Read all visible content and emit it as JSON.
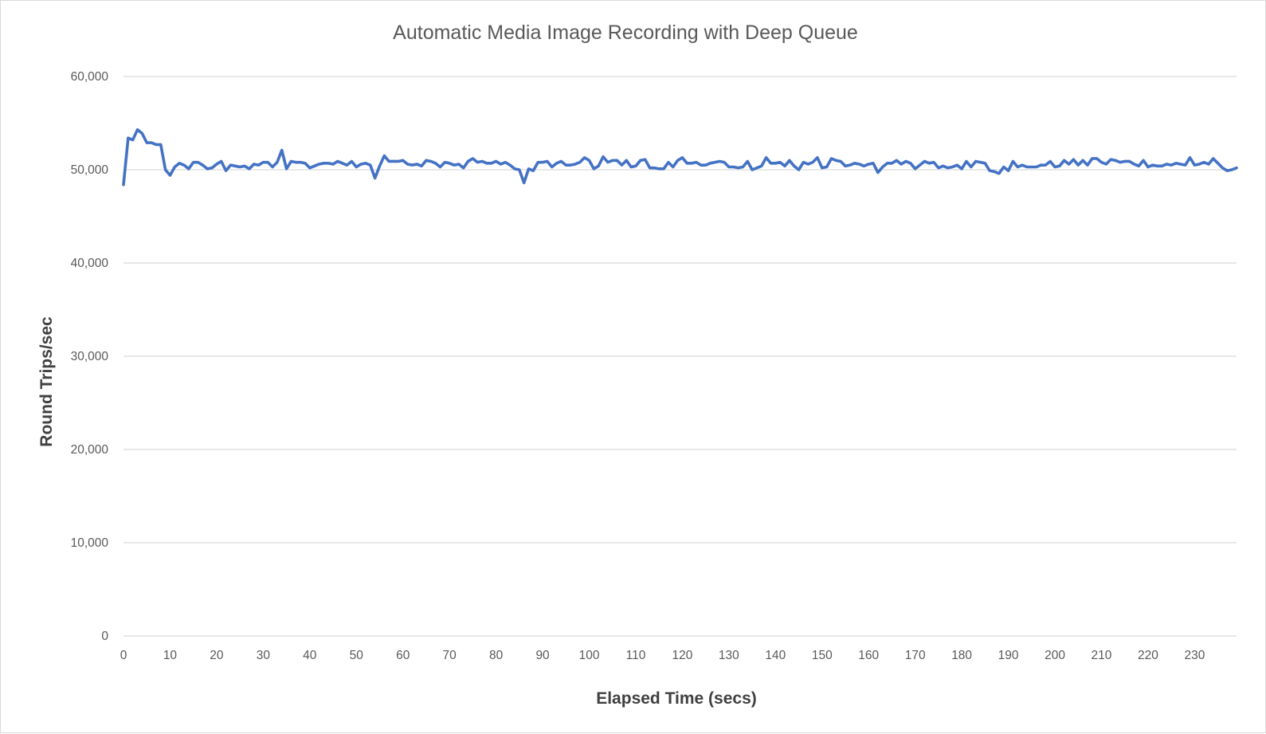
{
  "chart_data": {
    "type": "line",
    "title": "Automatic Media Image Recording with Deep Queue",
    "xlabel": "Elapsed Time (secs)",
    "ylabel": "Round Trips/sec",
    "xlim": [
      0,
      239
    ],
    "ylim": [
      0,
      60000
    ],
    "x_ticks": [
      0,
      10,
      20,
      30,
      40,
      50,
      60,
      70,
      80,
      90,
      100,
      110,
      120,
      130,
      140,
      150,
      160,
      170,
      180,
      190,
      200,
      210,
      220,
      230
    ],
    "x_tick_labels": [
      "0",
      "10",
      "20",
      "30",
      "40",
      "50",
      "60",
      "70",
      "80",
      "90",
      "100",
      "110",
      "120",
      "130",
      "140",
      "150",
      "160",
      "170",
      "180",
      "190",
      "200",
      "210",
      "220",
      "230"
    ],
    "y_ticks": [
      0,
      10000,
      20000,
      30000,
      40000,
      50000,
      60000
    ],
    "y_tick_labels": [
      "0",
      "10,000",
      "20,000",
      "30,000",
      "40,000",
      "50,000",
      "60,000"
    ],
    "grid": "horizontal",
    "legend": "none",
    "series": [
      {
        "color": "#4472c4",
        "x_start": 0,
        "x_step": 1,
        "values": [
          48400,
          53400,
          53200,
          54300,
          53900,
          52900,
          52900,
          52700,
          52700,
          50000,
          49400,
          50300,
          50700,
          50500,
          50100,
          50800,
          50800,
          50500,
          50100,
          50200,
          50600,
          50900,
          49900,
          50500,
          50400,
          50300,
          50400,
          50100,
          50600,
          50500,
          50800,
          50800,
          50300,
          50800,
          52100,
          50100,
          50900,
          50800,
          50800,
          50700,
          50200,
          50400,
          50600,
          50700,
          50700,
          50600,
          50900,
          50700,
          50500,
          50900,
          50300,
          50600,
          50700,
          50500,
          49100,
          50400,
          51500,
          50900,
          50900,
          50900,
          51000,
          50600,
          50500,
          50600,
          50400,
          51000,
          50900,
          50700,
          50300,
          50800,
          50700,
          50500,
          50600,
          50200,
          50900,
          51200,
          50800,
          50900,
          50700,
          50700,
          50900,
          50600,
          50800,
          50500,
          50100,
          50000,
          48600,
          50100,
          49900,
          50800,
          50800,
          50900,
          50300,
          50700,
          50900,
          50500,
          50500,
          50600,
          50800,
          51300,
          51000,
          50100,
          50400,
          51400,
          50800,
          51000,
          51000,
          50500,
          51000,
          50300,
          50400,
          51000,
          51100,
          50200,
          50200,
          50100,
          50100,
          50800,
          50300,
          51000,
          51300,
          50700,
          50700,
          50800,
          50500,
          50500,
          50700,
          50800,
          50900,
          50800,
          50300,
          50300,
          50200,
          50300,
          50900,
          50000,
          50200,
          50400,
          51300,
          50700,
          50700,
          50800,
          50400,
          51000,
          50400,
          50000,
          50800,
          50600,
          50800,
          51300,
          50200,
          50300,
          51200,
          51000,
          50900,
          50400,
          50500,
          50700,
          50600,
          50400,
          50600,
          50700,
          49700,
          50300,
          50700,
          50700,
          51000,
          50600,
          50900,
          50700,
          50100,
          50500,
          50900,
          50700,
          50800,
          50200,
          50400,
          50200,
          50300,
          50500,
          50100,
          50900,
          50300,
          50900,
          50800,
          50700,
          49900,
          49800,
          49600,
          50300,
          49900,
          50900,
          50300,
          50500,
          50300,
          50300,
          50300,
          50500,
          50500,
          50900,
          50300,
          50400,
          51000,
          50600,
          51100,
          50500,
          51000,
          50500,
          51200,
          51200,
          50800,
          50600,
          51100,
          51000,
          50800,
          50900,
          50900,
          50600,
          50400,
          51000,
          50300,
          50500,
          50400,
          50400,
          50600,
          50500,
          50700,
          50600,
          50500,
          51300,
          50500,
          50600,
          50800,
          50600,
          51200,
          50700,
          50200,
          49900,
          50000,
          50200
        ]
      }
    ]
  }
}
